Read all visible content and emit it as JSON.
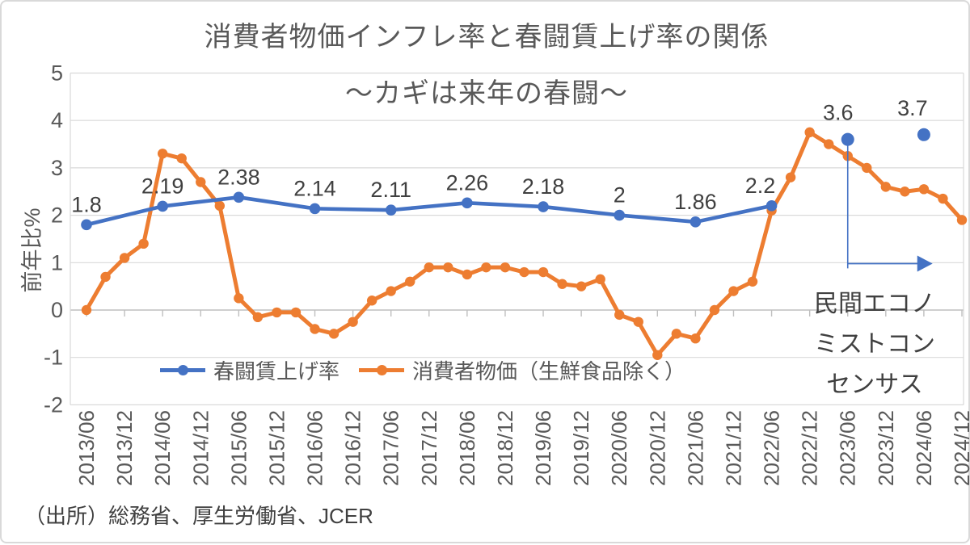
{
  "title": {
    "line1": "消費者物価インフレ率と春闘賃上げ率の関係",
    "line2": "～カギは来年の春闘～"
  },
  "y_axis": {
    "title": "前年比%",
    "ticks": [
      "5",
      "4",
      "3",
      "2",
      "1",
      "0",
      "-1",
      "-2"
    ],
    "max": 5,
    "min": -2
  },
  "x_axis": {
    "labels": [
      "2013/06",
      "2013/12",
      "2014/06",
      "2014/12",
      "2015/06",
      "2015/12",
      "2016/06",
      "2016/12",
      "2017/06",
      "2017/12",
      "2018/06",
      "2018/12",
      "2019/06",
      "2019/12",
      "2020/06",
      "2020/12",
      "2021/06",
      "2021/12",
      "2022/06",
      "2022/12",
      "2023/06",
      "2023/12",
      "2024/06",
      "2024/12"
    ]
  },
  "legend": {
    "items": [
      {
        "label": "春闘賃上げ率",
        "color": "#4472C4"
      },
      {
        "label": "消費者物価（生鮮食品除く）",
        "color": "#ED7D31"
      }
    ]
  },
  "annotation": {
    "line1": "民間エコノ",
    "line2": "ミストコン",
    "line3": "センサス"
  },
  "source": "（出所）総務省、厚生労働省、JCER",
  "colors": {
    "shunto": "#4472C4",
    "cpi": "#ED7D31",
    "grid": "#D9D9D9",
    "axis": "#BFBFBF",
    "tick_text": "#595959",
    "label_text": "#404040"
  },
  "chart_data": {
    "type": "line",
    "title": "消費者物価インフレ率と春闘賃上げ率の関係 ～カギは来年の春闘～",
    "ylabel": "前年比%",
    "ylim": [
      -2,
      5
    ],
    "grid": true,
    "legend_position": "bottom-inside",
    "x_quarterly": [
      "2013/06",
      "2013/09",
      "2013/12",
      "2014/03",
      "2014/06",
      "2014/09",
      "2014/12",
      "2015/03",
      "2015/06",
      "2015/09",
      "2015/12",
      "2016/03",
      "2016/06",
      "2016/09",
      "2016/12",
      "2017/03",
      "2017/06",
      "2017/09",
      "2017/12",
      "2018/03",
      "2018/06",
      "2018/09",
      "2018/12",
      "2019/03",
      "2019/06",
      "2019/09",
      "2019/12",
      "2020/03",
      "2020/06",
      "2020/09",
      "2020/12",
      "2021/03",
      "2021/06",
      "2021/09",
      "2021/12",
      "2022/03",
      "2022/06",
      "2022/09",
      "2022/12",
      "2023/03",
      "2023/06",
      "2023/09",
      "2023/12",
      "2024/03",
      "2024/06",
      "2024/09",
      "2024/12"
    ],
    "series": [
      {
        "name": "春闘賃上げ率",
        "color": "#4472C4",
        "points": [
          {
            "x": "2013/06",
            "y": 1.8,
            "label": "1.8"
          },
          {
            "x": "2014/06",
            "y": 2.19,
            "label": "2.19"
          },
          {
            "x": "2015/06",
            "y": 2.38,
            "label": "2.38"
          },
          {
            "x": "2016/06",
            "y": 2.14,
            "label": "2.14"
          },
          {
            "x": "2017/06",
            "y": 2.11,
            "label": "2.11"
          },
          {
            "x": "2018/06",
            "y": 2.26,
            "label": "2.26"
          },
          {
            "x": "2019/06",
            "y": 2.18,
            "label": "2.18"
          },
          {
            "x": "2020/06",
            "y": 2.0,
            "label": "2"
          },
          {
            "x": "2021/06",
            "y": 1.86,
            "label": "1.86"
          },
          {
            "x": "2022/06",
            "y": 2.2,
            "label": "2.2",
            "dx": -14
          }
        ],
        "forecast_points": [
          {
            "x": "2023/06",
            "y": 3.6,
            "label": "3.6",
            "dx": -12,
            "dy": -8
          },
          {
            "x": "2024/06",
            "y": 3.7,
            "label": "3.7",
            "dx": -14,
            "dy": -8
          }
        ]
      },
      {
        "name": "消費者物価（生鮮食品除く）",
        "color": "#ED7D31",
        "values": [
          0.0,
          0.7,
          1.1,
          1.4,
          3.3,
          3.2,
          2.7,
          2.2,
          0.25,
          -0.15,
          -0.05,
          -0.05,
          -0.4,
          -0.5,
          -0.25,
          0.2,
          0.4,
          0.6,
          0.9,
          0.9,
          0.75,
          0.9,
          0.9,
          0.8,
          0.8,
          0.55,
          0.5,
          0.65,
          -0.1,
          -0.25,
          -0.95,
          -0.5,
          -0.6,
          0.0,
          0.4,
          0.6,
          2.1,
          2.8,
          3.75,
          3.5,
          3.25,
          3.0,
          2.6,
          2.5,
          2.55,
          2.35,
          1.9
        ]
      }
    ],
    "annotation_arrow": {
      "at_x": "2023/06",
      "drop_from": 3.6,
      "drop_to": 0.88,
      "arrow_y": 0.98,
      "label": "民間エコノミストコンセンサス"
    }
  }
}
